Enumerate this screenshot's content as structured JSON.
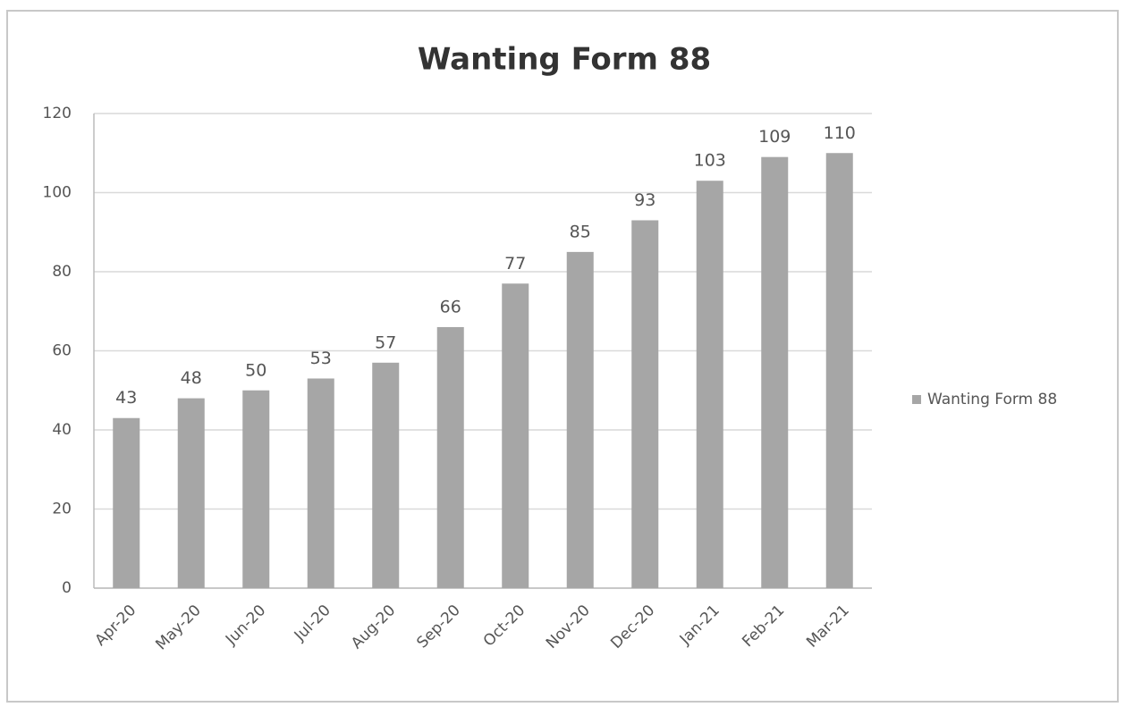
{
  "chart_data": {
    "type": "bar",
    "title": "Wanting Form 88",
    "categories": [
      "Apr-20",
      "May-20",
      "Jun-20",
      "Jul-20",
      "Aug-20",
      "Sep-20",
      "Oct-20",
      "Nov-20",
      "Dec-20",
      "Jan-21",
      "Feb-21",
      "Mar-21"
    ],
    "series": [
      {
        "name": "Wanting Form 88",
        "color": "#a6a6a6",
        "values": [
          43,
          48,
          50,
          53,
          57,
          66,
          77,
          85,
          93,
          103,
          109,
          110
        ]
      }
    ],
    "ylim": [
      0,
      120
    ],
    "yticks": [
      0,
      20,
      40,
      60,
      80,
      100,
      120
    ],
    "grid": true,
    "legend": "right"
  }
}
